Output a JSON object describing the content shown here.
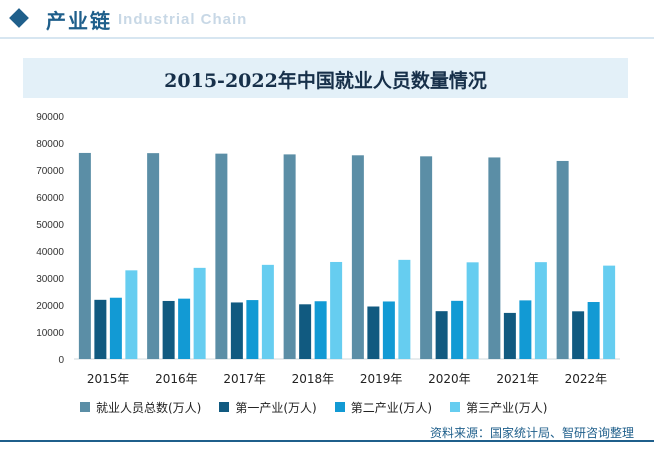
{
  "header": {
    "title": "产业链",
    "subtitle": "Industrial Chain"
  },
  "source": "资料来源：国家统计局、智研咨询整理",
  "chart_data": {
    "type": "bar",
    "title": "2015-2022年中国就业人员数量情况",
    "xlabel": "",
    "ylabel": "",
    "categories": [
      "2015年",
      "2016年",
      "2017年",
      "2018年",
      "2019年",
      "2020年",
      "2021年",
      "2022年"
    ],
    "ylim": [
      0,
      90000
    ],
    "yticks": [
      0,
      10000,
      20000,
      30000,
      40000,
      50000,
      60000,
      70000,
      80000,
      90000
    ],
    "grid": false,
    "legend": "bottom",
    "series": [
      {
        "name": "就业人员总数(万人)",
        "color": "#5b8ea6",
        "values": [
          76320,
          76245,
          76058,
          75782,
          75447,
          75064,
          74652,
          73351
        ]
      },
      {
        "name": "第一产业(万人)",
        "color": "#115a80",
        "values": [
          21919,
          21496,
          20944,
          20258,
          19445,
          17715,
          17072,
          17663
        ]
      },
      {
        "name": "第二产业(万人)",
        "color": "#129ad4",
        "values": [
          22693,
          22350,
          21824,
          21390,
          21305,
          21543,
          21712,
          21105
        ]
      },
      {
        "name": "第三产业(万人)",
        "color": "#66cdf0",
        "values": [
          32839,
          33757,
          34872,
          35938,
          36721,
          35806,
          35868,
          34583
        ]
      }
    ]
  }
}
